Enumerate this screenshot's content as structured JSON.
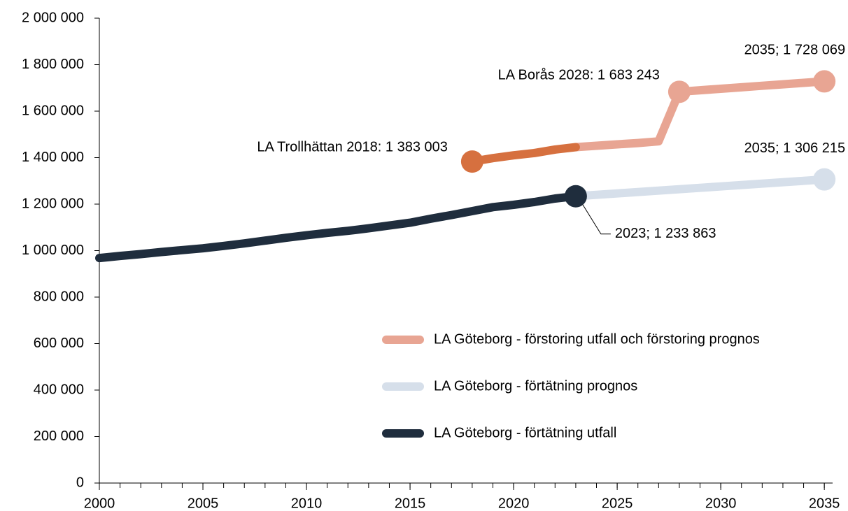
{
  "chart_data": {
    "type": "line",
    "x": [
      2000,
      2001,
      2002,
      2003,
      2004,
      2005,
      2006,
      2007,
      2008,
      2009,
      2010,
      2011,
      2012,
      2013,
      2014,
      2015,
      2016,
      2017,
      2018,
      2019,
      2020,
      2021,
      2022,
      2023,
      2024,
      2025,
      2026,
      2027,
      2028,
      2029,
      2030,
      2031,
      2032,
      2033,
      2034,
      2035
    ],
    "series": [
      {
        "name": "LA Göteborg - förstoring utfall och förstoring prognos",
        "color": "#e8a593",
        "actual_color": "#d6703f",
        "actual_until": 2023,
        "values": [
          null,
          null,
          null,
          null,
          null,
          null,
          null,
          null,
          null,
          null,
          null,
          null,
          null,
          null,
          null,
          null,
          null,
          null,
          1383003,
          1398000,
          1410000,
          1420000,
          1435000,
          1445000,
          1451000,
          1457000,
          1463000,
          1470000,
          1683243,
          1689800,
          1696200,
          1702700,
          1709100,
          1715500,
          1721800,
          1728069
        ]
      },
      {
        "name": "LA Göteborg - förtätning prognos",
        "color": "#d6dfea",
        "values": [
          null,
          null,
          null,
          null,
          null,
          null,
          null,
          null,
          null,
          null,
          null,
          null,
          null,
          null,
          null,
          null,
          null,
          null,
          null,
          null,
          null,
          null,
          null,
          1233863,
          1239900,
          1245900,
          1251900,
          1257900,
          1264000,
          1270000,
          1276000,
          1282100,
          1288100,
          1294100,
          1300200,
          1306215
        ]
      },
      {
        "name": "LA Göteborg - förtätning utfall",
        "color": "#1f2d3d",
        "values": [
          968000,
          977000,
          985000,
          994000,
          1002000,
          1010000,
          1020000,
          1031000,
          1043000,
          1055000,
          1066000,
          1076000,
          1085000,
          1096000,
          1108000,
          1120000,
          1137000,
          1153000,
          1170000,
          1187000,
          1197000,
          1209000,
          1224000,
          1233863,
          null,
          null,
          null,
          null,
          null,
          null,
          null,
          null,
          null,
          null,
          null,
          null
        ]
      }
    ],
    "annotations": [
      {
        "text": "LA Trollhättan 2018: 1 383 003",
        "series": 0,
        "x": 2018,
        "position": "left"
      },
      {
        "text": "LA Borås 2028: 1 683 243",
        "series": 0,
        "x": 2028,
        "position": "above-left"
      },
      {
        "text": "2035; 1 728 069",
        "series": 0,
        "x": 2035,
        "position": "above"
      },
      {
        "text": "2035; 1 306 215",
        "series": 1,
        "x": 2035,
        "position": "above"
      },
      {
        "text": "2023; 1 233 863",
        "series": 2,
        "x": 2023,
        "position": "below-right"
      }
    ],
    "xlim": [
      2000,
      2035.4
    ],
    "xticks": [
      2000,
      2005,
      2010,
      2015,
      2020,
      2025,
      2030,
      2035
    ],
    "ylim": [
      0,
      2000000
    ],
    "yticks": [
      0,
      {
        "value": 200000,
        "label": "200 000"
      },
      {
        "value": 400000,
        "label": "400 000"
      },
      {
        "value": 600000,
        "label": "600 000"
      },
      {
        "value": 800000,
        "label": "800 000"
      },
      {
        "value": 1000000,
        "label": "1 000 000"
      },
      {
        "value": 1200000,
        "label": "1 200 000"
      },
      {
        "value": 1400000,
        "label": "1 400 000"
      },
      {
        "value": 1600000,
        "label": "1 600 000"
      },
      {
        "value": 1800000,
        "label": "1 800 000"
      },
      {
        "value": 2000000,
        "label": "2 000 000"
      }
    ],
    "grid": false,
    "legend": "lower-right"
  }
}
